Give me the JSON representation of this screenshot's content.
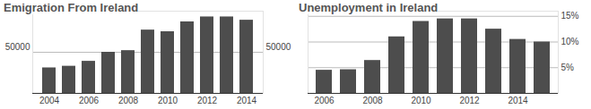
{
  "chart_data": [
    {
      "type": "bar",
      "title": "Emigration From Ireland",
      "categories": [
        "2004",
        null,
        "2006",
        null,
        "2008",
        null,
        "2010",
        null,
        "2012",
        null,
        "2014"
      ],
      "values": [
        31000,
        33000,
        39000,
        50000,
        52000,
        77000,
        75000,
        87000,
        93000,
        93000,
        89000
      ],
      "color": "#4d4d4d",
      "ylim": [
        0,
        100000
      ],
      "yticks": [
        50000
      ],
      "grid": true
    },
    {
      "type": "bar",
      "title": "Unemployment in Ireland",
      "categories": [
        "2006",
        null,
        "2008",
        null,
        "2010",
        null,
        "2012",
        null,
        "2014",
        null
      ],
      "values": [
        4.5,
        4.6,
        6.4,
        11,
        14,
        14.5,
        14.5,
        12.5,
        10.5,
        10
      ],
      "color": "#4d4d4d",
      "ylim": [
        0,
        16
      ],
      "yticks": [
        {
          "value": 5,
          "label": "5%"
        },
        {
          "value": 10,
          "label": "10%"
        },
        {
          "value": 15,
          "label": "15%"
        }
      ],
      "grid": true
    }
  ]
}
